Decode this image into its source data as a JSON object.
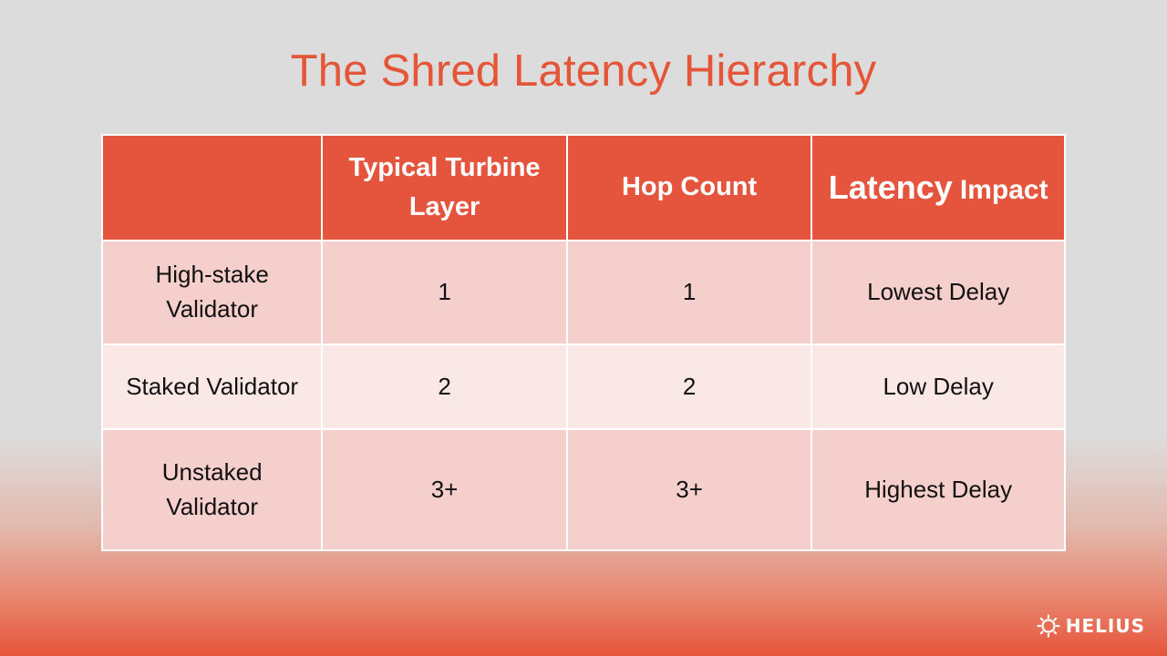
{
  "slide": {
    "title": "The Shred Latency Hierarchy"
  },
  "table": {
    "headers": {
      "col0": "",
      "col1_line1": "Typical Turbine",
      "col1_line2": "Layer",
      "col2": "Hop Count",
      "col3_word1": "Latency",
      "col3_word2": "Impact"
    },
    "rows": [
      {
        "node_line1": "High-stake",
        "node_line2": "Validator",
        "turbine_layer": "1",
        "hop_count": "1",
        "latency_impact": "Lowest Delay"
      },
      {
        "node": "Staked Validator",
        "turbine_layer": "2",
        "hop_count": "2",
        "latency_impact": "Low Delay"
      },
      {
        "node_line1": "Unstaked",
        "node_line2": "Validator",
        "turbine_layer": "3+",
        "hop_count": "3+",
        "latency_impact": "Highest Delay"
      }
    ]
  },
  "logo": {
    "text": "HELIUS",
    "icon": "helius-sun-icon"
  },
  "colors": {
    "accent": "#e55538",
    "header_bg": "#e5553d",
    "row_odd_bg": "#f5cfcc",
    "row_even_bg": "#fae8e7"
  }
}
